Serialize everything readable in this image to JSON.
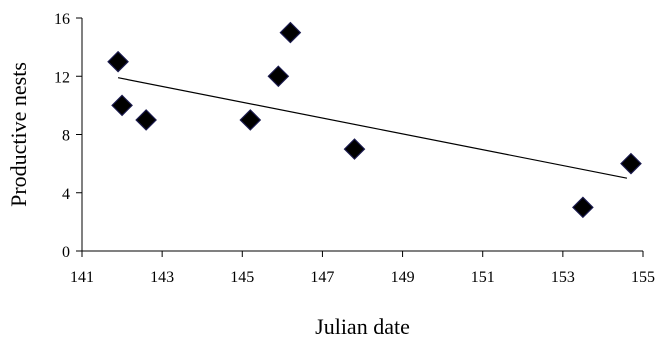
{
  "chart_data": {
    "type": "scatter",
    "title": "",
    "xlabel": "Julian date",
    "ylabel": "Productive nests",
    "xlim": [
      141,
      155
    ],
    "ylim": [
      0,
      16
    ],
    "x_ticks": [
      "141",
      "143",
      "145",
      "147",
      "149",
      "151",
      "153",
      "155"
    ],
    "y_ticks": [
      "0",
      "4",
      "8",
      "12",
      "16"
    ],
    "grid": false,
    "legend": "none",
    "marker_color": "#000000",
    "series": [
      {
        "points": [
          {
            "x": 141.9,
            "y": 13
          },
          {
            "x": 142.0,
            "y": 10
          },
          {
            "x": 142.6,
            "y": 9
          },
          {
            "x": 145.2,
            "y": 9
          },
          {
            "x": 145.9,
            "y": 12
          },
          {
            "x": 146.2,
            "y": 15
          },
          {
            "x": 147.8,
            "y": 7
          },
          {
            "x": 153.5,
            "y": 3
          },
          {
            "x": 154.7,
            "y": 6
          }
        ]
      }
    ],
    "trendline": {
      "x": [
        141.9,
        154.6
      ],
      "y": [
        11.9,
        5.0
      ]
    }
  }
}
